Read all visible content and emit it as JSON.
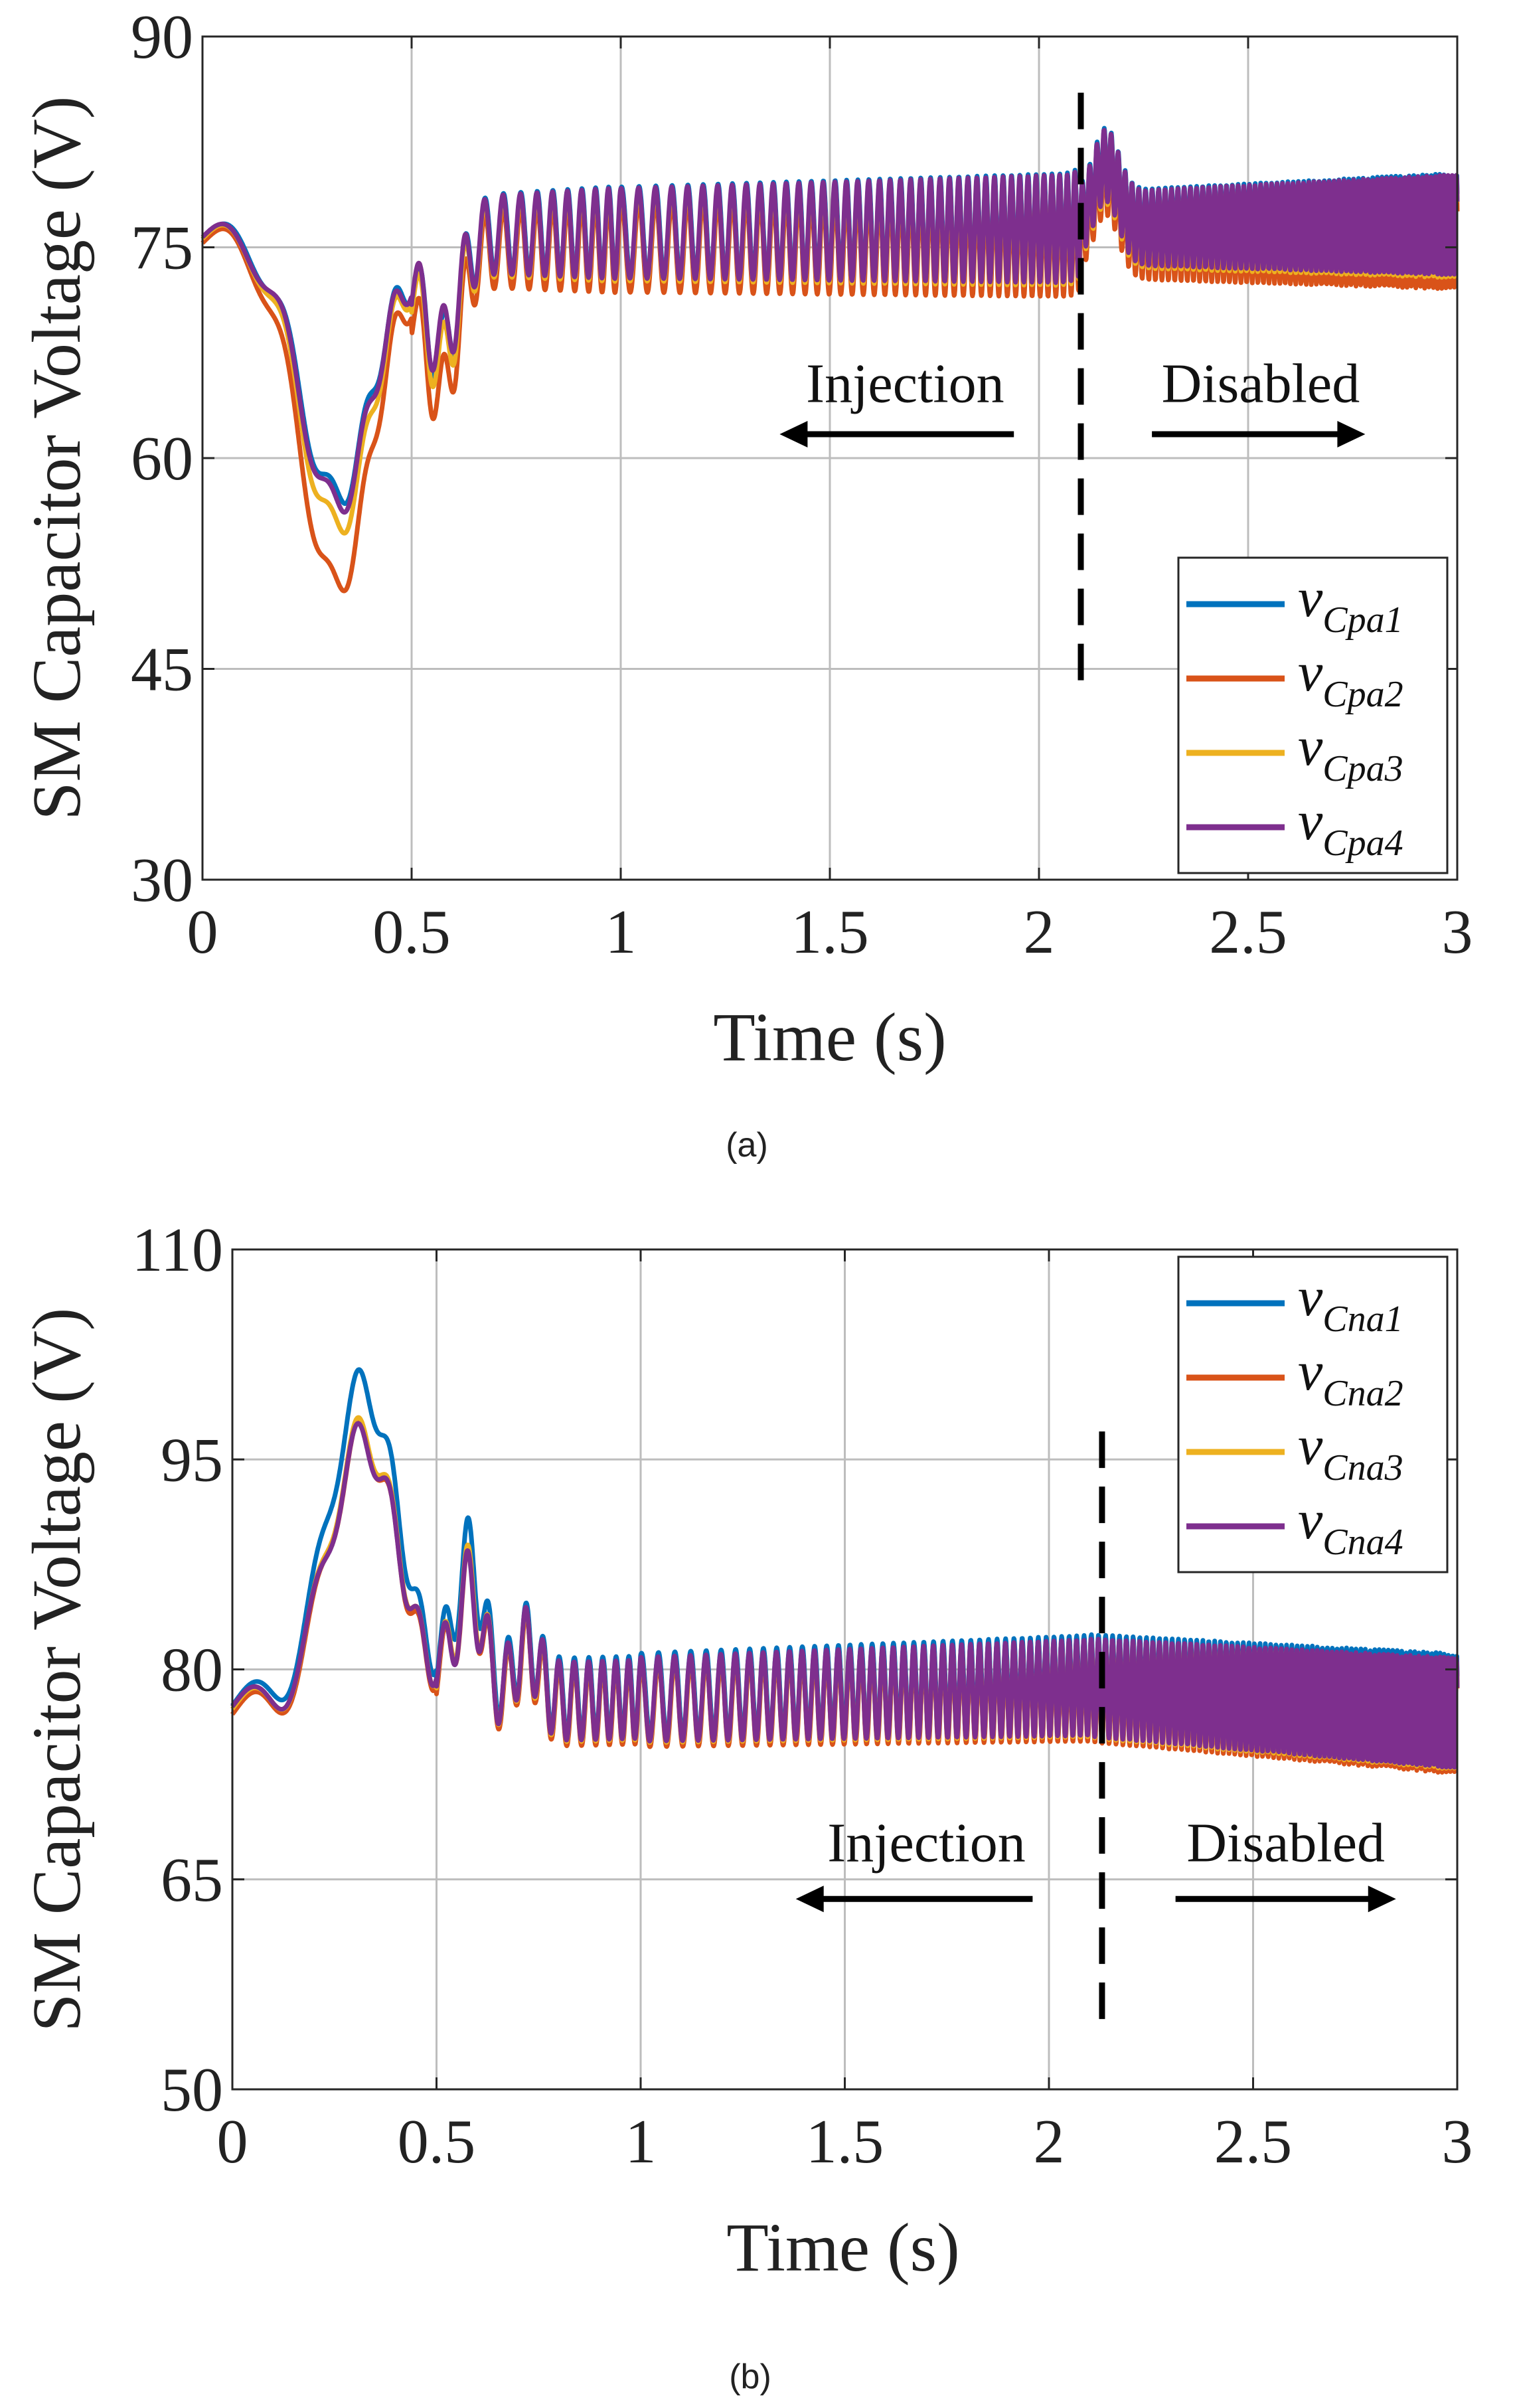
{
  "chart_data": [
    {
      "type": "line",
      "caption": "(a)",
      "xlabel": "Time (s)",
      "ylabel": "SM Capacitor Voltage (V)",
      "xlim": [
        0,
        3
      ],
      "ylim": [
        30,
        90
      ],
      "xticks": [
        0,
        0.5,
        1,
        1.5,
        2,
        2.5,
        3
      ],
      "xtick_labels": [
        "0",
        "0.5",
        "1",
        "1.5",
        "2",
        "2.5",
        "3"
      ],
      "yticks": [
        30,
        45,
        60,
        75,
        90
      ],
      "ytick_labels": [
        "30",
        "45",
        "60",
        "75",
        "90"
      ],
      "grid": true,
      "legend_position": "lower-right",
      "vline_x": 2.1,
      "vline_range": [
        43,
        86
      ],
      "annotations": [
        {
          "text": "Injection",
          "x": 1.68,
          "y": 64,
          "arrow_from": 1.94,
          "arrow_to": 1.38,
          "arrow_y": 61.7
        },
        {
          "text": "Disabled",
          "x": 2.53,
          "y": 64,
          "arrow_from": 2.27,
          "arrow_to": 2.78,
          "arrow_y": 61.7
        }
      ],
      "series": [
        {
          "name": "v",
          "sub": "Cpa1",
          "color": "#0072BD",
          "dip": 57,
          "dip2": 67.5,
          "offset": 0.3
        },
        {
          "name": "v",
          "sub": "Cpa2",
          "color": "#D95319",
          "dip": 51,
          "dip2": 65.5,
          "offset": -0.8
        },
        {
          "name": "v",
          "sub": "Cpa3",
          "color": "#EDB120",
          "dip": 55,
          "dip2": 67,
          "offset": 0.0
        },
        {
          "name": "v",
          "sub": "Cpa4",
          "color": "#7E2F8E",
          "dip": 56.5,
          "dip2": 68,
          "offset": 0.2
        }
      ]
    },
    {
      "type": "line",
      "caption": "(b)",
      "xlabel": "Time (s)",
      "ylabel": "SM Capacitor Voltage (V)",
      "xlim": [
        0,
        3
      ],
      "ylim": [
        50,
        110
      ],
      "xticks": [
        0,
        0.5,
        1,
        1.5,
        2,
        2.5,
        3
      ],
      "xtick_labels": [
        "0",
        "0.5",
        "1",
        "1.5",
        "2",
        "2.5",
        "3"
      ],
      "yticks": [
        50,
        65,
        80,
        95,
        110
      ],
      "ytick_labels": [
        "50",
        "65",
        "80",
        "95",
        "110"
      ],
      "grid": true,
      "legend_position": "top-right",
      "vline_x": 2.13,
      "vline_range": [
        54,
        97
      ],
      "annotations": [
        {
          "text": "Injection",
          "x": 1.7,
          "y": 66.3,
          "arrow_from": 1.96,
          "arrow_to": 1.38,
          "arrow_y": 63.6
        },
        {
          "text": "Disabled",
          "x": 2.58,
          "y": 66.3,
          "arrow_from": 2.31,
          "arrow_to": 2.85,
          "arrow_y": 63.6
        }
      ],
      "series": [
        {
          "name": "v",
          "sub": "Cna1",
          "color": "#0072BD",
          "peak": 99.5,
          "peak2": 89,
          "offset": 0.4
        },
        {
          "name": "v",
          "sub": "Cna2",
          "color": "#D95319",
          "peak": 96.5,
          "peak2": 87.5,
          "offset": -0.3
        },
        {
          "name": "v",
          "sub": "Cna3",
          "color": "#EDB120",
          "peak": 96.5,
          "peak2": 87.5,
          "offset": 0.0
        },
        {
          "name": "v",
          "sub": "Cna4",
          "color": "#7E2F8E",
          "peak": 96,
          "peak2": 87,
          "offset": 0.1
        }
      ]
    }
  ]
}
